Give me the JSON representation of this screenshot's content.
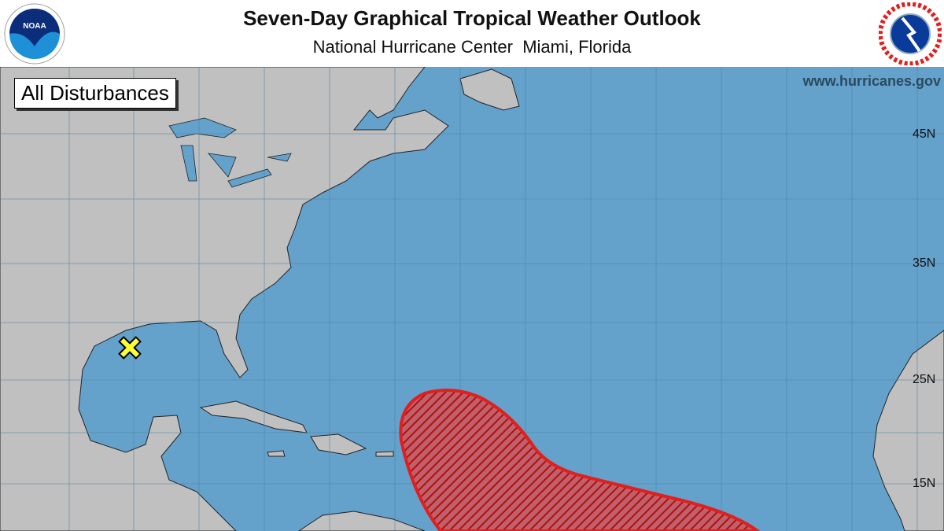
{
  "header": {
    "title": "Seven-Day Graphical Tropical Weather Outlook",
    "subtitle": "National Hurricane Center  Miami, Florida",
    "left_logo": "NOAA",
    "right_logo": "NATIONAL WEATHER SERVICE"
  },
  "map": {
    "label": "All Disturbances",
    "website": "www.hurricanes.gov",
    "latitude_labels": [
      "45N",
      "35N",
      "25N",
      "15N"
    ],
    "colors": {
      "ocean": "#65a2cb",
      "land": "#c0c0c0",
      "outlook_area": "#e0201e",
      "disturbance_marker": "#ffff33"
    },
    "disturbance_marker": "yellow-x",
    "outlook_area": "red-hatched"
  }
}
